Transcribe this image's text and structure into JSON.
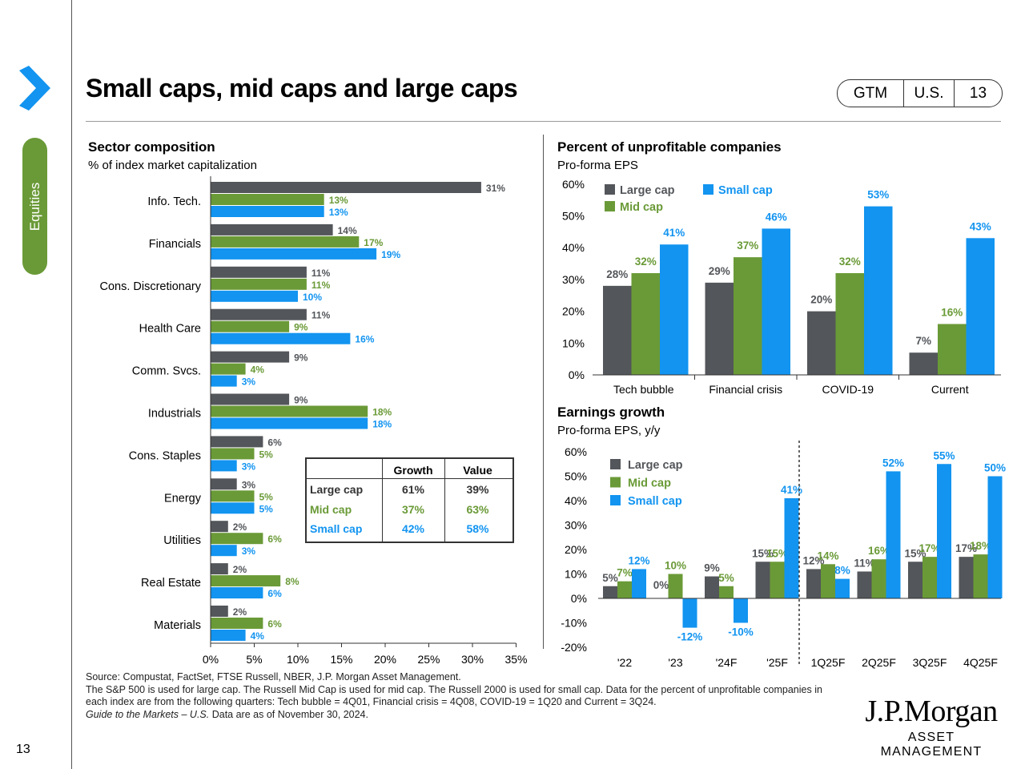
{
  "page": {
    "title": "Small caps, mid caps and large caps",
    "page_number": "13",
    "side_tab": "Equities",
    "badge": {
      "gtm": "GTM",
      "region": "U.S.",
      "number": "13"
    }
  },
  "colors": {
    "large": "#53565a",
    "mid": "#6a9a37",
    "small": "#1294f0"
  },
  "sector": {
    "title": "Sector composition",
    "subtitle": "% of index market capitalization"
  },
  "unprofitable": {
    "title": "Percent of unprofitable companies",
    "subtitle": "Pro-forma EPS"
  },
  "earnings": {
    "title": "Earnings growth",
    "subtitle": "Pro-forma EPS, y/y"
  },
  "growth_value": {
    "headers": [
      "Growth",
      "Value"
    ],
    "rows": [
      {
        "label": "Large cap",
        "growth": "61%",
        "value": "39%"
      },
      {
        "label": "Mid cap",
        "growth": "37%",
        "value": "63%"
      },
      {
        "label": "Small cap",
        "growth": "42%",
        "value": "58%"
      }
    ]
  },
  "chart_data": [
    {
      "type": "bar",
      "orientation": "horizontal",
      "title": "Sector composition",
      "subtitle": "% of index market capitalization",
      "categories": [
        "Info. Tech.",
        "Financials",
        "Cons. Discretionary",
        "Health Care",
        "Comm. Svcs.",
        "Industrials",
        "Cons. Staples",
        "Energy",
        "Utilities",
        "Real Estate",
        "Materials"
      ],
      "series": [
        {
          "name": "Large cap",
          "values": [
            31,
            14,
            11,
            11,
            9,
            9,
            6,
            3,
            2,
            2,
            2
          ]
        },
        {
          "name": "Mid cap",
          "values": [
            13,
            17,
            11,
            9,
            4,
            18,
            5,
            5,
            6,
            8,
            6
          ]
        },
        {
          "name": "Small cap",
          "values": [
            13,
            19,
            10,
            16,
            3,
            18,
            3,
            5,
            3,
            6,
            4
          ]
        }
      ],
      "xlim": [
        0,
        35
      ],
      "xticks": [
        "0%",
        "5%",
        "10%",
        "15%",
        "20%",
        "25%",
        "30%",
        "35%"
      ]
    },
    {
      "type": "bar",
      "title": "Percent of unprofitable companies",
      "subtitle": "Pro-forma EPS",
      "categories": [
        "Tech bubble",
        "Financial crisis",
        "COVID-19",
        "Current"
      ],
      "series": [
        {
          "name": "Large cap",
          "values": [
            28,
            29,
            20,
            7
          ]
        },
        {
          "name": "Mid cap",
          "values": [
            32,
            37,
            32,
            16
          ]
        },
        {
          "name": "Small cap",
          "values": [
            41,
            46,
            53,
            43
          ]
        }
      ],
      "ylim": [
        0,
        60
      ],
      "yticks": [
        "0%",
        "10%",
        "20%",
        "30%",
        "40%",
        "50%",
        "60%"
      ],
      "legend": [
        "Large cap",
        "Mid cap",
        "Small cap"
      ]
    },
    {
      "type": "bar",
      "title": "Earnings growth",
      "subtitle": "Pro-forma EPS, y/y",
      "categories": [
        "'22",
        "'23",
        "'24F",
        "'25F",
        "1Q25F",
        "2Q25F",
        "3Q25F",
        "4Q25F"
      ],
      "series": [
        {
          "name": "Large cap",
          "values": [
            5,
            0,
            9,
            15,
            12,
            11,
            15,
            17
          ]
        },
        {
          "name": "Mid cap",
          "values": [
            7,
            10,
            5,
            15,
            14,
            16,
            17,
            18
          ]
        },
        {
          "name": "Small cap",
          "values": [
            12,
            -12,
            -10,
            41,
            8,
            52,
            55,
            50
          ]
        }
      ],
      "ylim": [
        -20,
        60
      ],
      "yticks": [
        "-20%",
        "-10%",
        "0%",
        "10%",
        "20%",
        "30%",
        "40%",
        "50%",
        "60%"
      ],
      "legend": [
        "Large cap",
        "Mid cap",
        "Small cap"
      ]
    }
  ],
  "footer": {
    "source": "Source: Compustat, FactSet, FTSE Russell, NBER, J.P. Morgan Asset Management.",
    "note": "The S&P 500 is used for large cap. The Russell Mid Cap is used for mid cap. The Russell 2000 is used for small cap. Data for the percent of unprofitable companies in each index are from the following quarters: Tech bubble = 4Q01, Financial crisis = 4Q08, COVID-19 = 1Q20 and Current = 3Q24.",
    "guide_italic": "Guide to the Markets – U.S.",
    "guide_rest": " Data are as of November 30, 2024."
  },
  "logo": {
    "line1": "J.P.Morgan",
    "line2": "ASSET MANAGEMENT"
  }
}
